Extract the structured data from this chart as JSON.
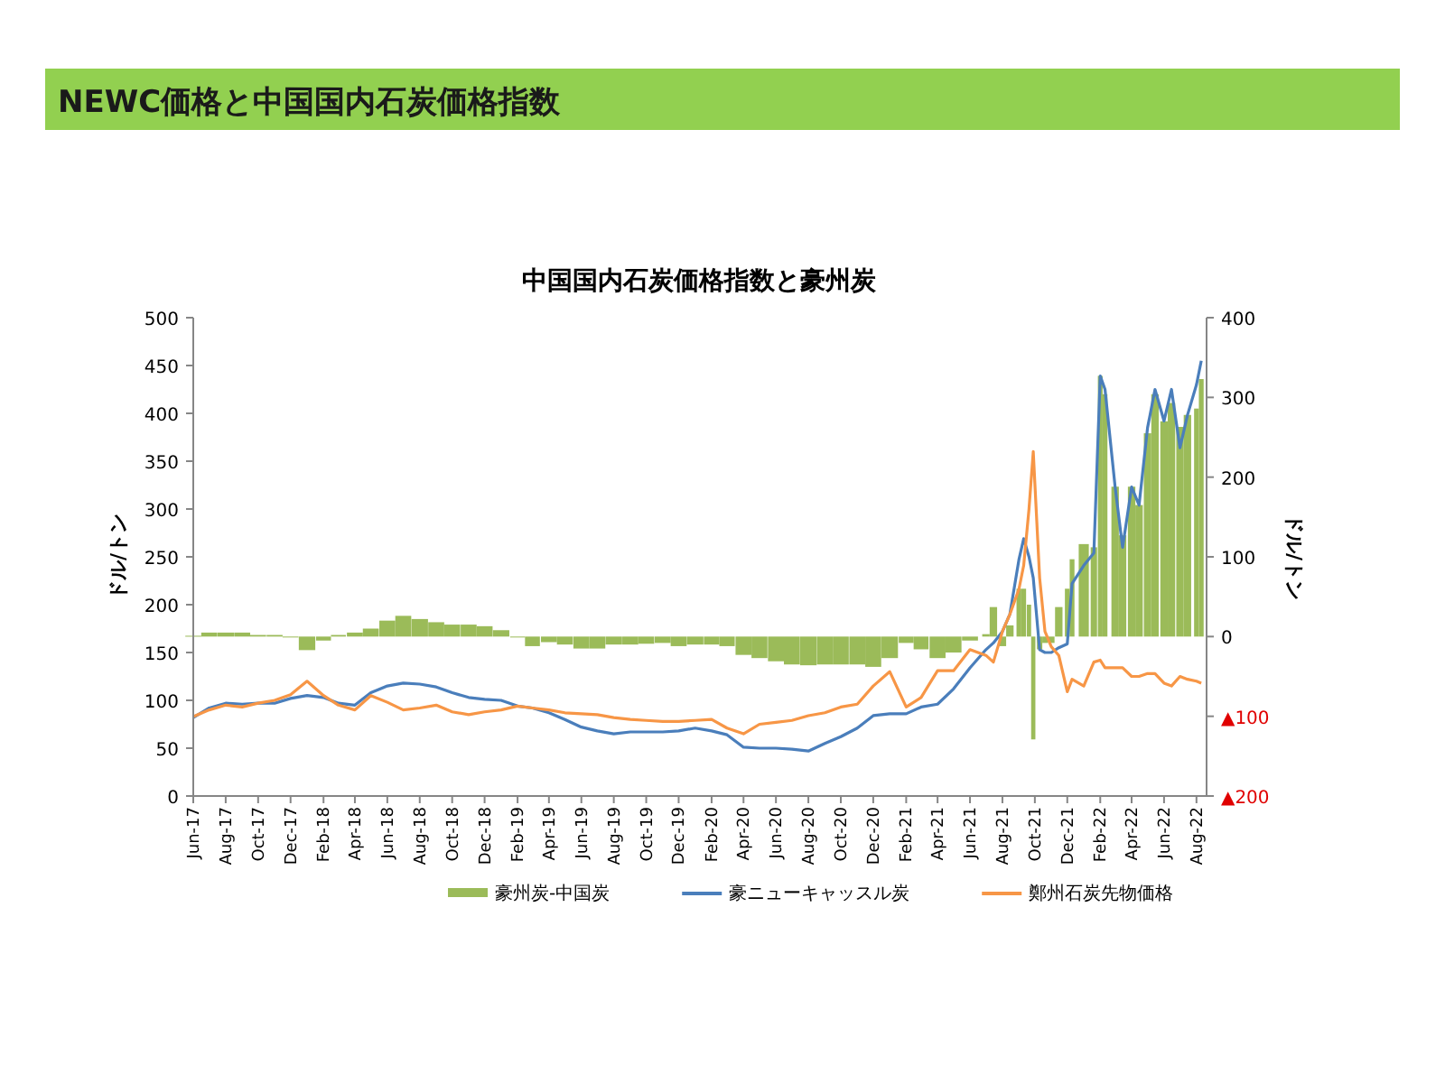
{
  "chart_data": {
    "type": "bar",
    "title": "NEWC価格と中国国内石炭価格指数",
    "subtitle": "中国国内石炭価格指数と豪州炭",
    "ylabel": "ドル/トン",
    "y2label": "ドル/トン",
    "legend": "bottom",
    "x": [
      "2017-06-01",
      "2017-07-01",
      "2017-08-01",
      "2017-09-01",
      "2017-10-01",
      "2017-11-01",
      "2017-12-01",
      "2018-01-01",
      "2018-02-01",
      "2018-03-01",
      "2018-04-01",
      "2018-05-01",
      "2018-06-01",
      "2018-07-01",
      "2018-08-01",
      "2018-09-01",
      "2018-10-01",
      "2018-11-01",
      "2018-12-01",
      "2019-01-01",
      "2019-02-01",
      "2019-03-01",
      "2019-04-01",
      "2019-05-01",
      "2019-06-01",
      "2019-07-01",
      "2019-08-01",
      "2019-09-01",
      "2019-10-01",
      "2019-11-01",
      "2019-12-01",
      "2020-01-01",
      "2020-02-01",
      "2020-03-01",
      "2020-04-01",
      "2020-05-01",
      "2020-06-01",
      "2020-07-01",
      "2020-08-01",
      "2020-09-01",
      "2020-10-01",
      "2020-11-01",
      "2020-12-01",
      "2021-01-01",
      "2021-02-01",
      "2021-03-01",
      "2021-04-01",
      "2021-05-01",
      "2021-06-01",
      "2021-07-01",
      "2021-07-15",
      "2021-08-01",
      "2021-08-15",
      "2021-09-01",
      "2021-09-10",
      "2021-09-20",
      "2021-09-28",
      "2021-10-10",
      "2021-10-20",
      "2021-11-01",
      "2021-11-15",
      "2021-12-01",
      "2021-12-10",
      "2022-01-01",
      "2022-01-20",
      "2022-02-01",
      "2022-02-10",
      "2022-03-01",
      "2022-03-15",
      "2022-04-01",
      "2022-04-15",
      "2022-05-01",
      "2022-05-15",
      "2022-06-01",
      "2022-06-15",
      "2022-07-01",
      "2022-07-15",
      "2022-08-01",
      "2022-08-10"
    ],
    "xlim": [
      "2017-06-01",
      "2022-08-20"
    ],
    "xticks": [
      {
        "value": "2017-06-01",
        "label": "Jun-17"
      },
      {
        "value": "2017-08-01",
        "label": "Aug-17"
      },
      {
        "value": "2017-10-01",
        "label": "Oct-17"
      },
      {
        "value": "2017-12-01",
        "label": "Dec-17"
      },
      {
        "value": "2018-02-01",
        "label": "Feb-18"
      },
      {
        "value": "2018-04-01",
        "label": "Apr-18"
      },
      {
        "value": "2018-06-01",
        "label": "Jun-18"
      },
      {
        "value": "2018-08-01",
        "label": "Aug-18"
      },
      {
        "value": "2018-10-01",
        "label": "Oct-18"
      },
      {
        "value": "2018-12-01",
        "label": "Dec-18"
      },
      {
        "value": "2019-02-01",
        "label": "Feb-19"
      },
      {
        "value": "2019-04-01",
        "label": "Apr-19"
      },
      {
        "value": "2019-06-01",
        "label": "Jun-19"
      },
      {
        "value": "2019-08-01",
        "label": "Aug-19"
      },
      {
        "value": "2019-10-01",
        "label": "Oct-19"
      },
      {
        "value": "2019-12-01",
        "label": "Dec-19"
      },
      {
        "value": "2020-02-01",
        "label": "Feb-20"
      },
      {
        "value": "2020-04-01",
        "label": "Apr-20"
      },
      {
        "value": "2020-06-01",
        "label": "Jun-20"
      },
      {
        "value": "2020-08-01",
        "label": "Aug-20"
      },
      {
        "value": "2020-10-01",
        "label": "Oct-20"
      },
      {
        "value": "2020-12-01",
        "label": "Dec-20"
      },
      {
        "value": "2021-02-01",
        "label": "Feb-21"
      },
      {
        "value": "2021-04-01",
        "label": "Apr-21"
      },
      {
        "value": "2021-06-01",
        "label": "Jun-21"
      },
      {
        "value": "2021-08-01",
        "label": "Aug-21"
      },
      {
        "value": "2021-10-01",
        "label": "Oct-21"
      },
      {
        "value": "2021-12-01",
        "label": "Dec-21"
      },
      {
        "value": "2022-02-01",
        "label": "Feb-22"
      },
      {
        "value": "2022-04-01",
        "label": "Apr-22"
      },
      {
        "value": "2022-06-01",
        "label": "Jun-22"
      },
      {
        "value": "2022-08-01",
        "label": "Aug-22"
      }
    ],
    "ylim": [
      0,
      500
    ],
    "yticks": [
      0,
      50,
      100,
      150,
      200,
      250,
      300,
      350,
      400,
      450,
      500
    ],
    "y2lim": [
      -200,
      400
    ],
    "y2ticks": [
      400,
      300,
      200,
      100,
      0,
      {
        "value": -100,
        "label": "▲100"
      },
      {
        "value": -200,
        "label": "▲200"
      }
    ],
    "series": [
      {
        "name": "豪州炭-中国炭",
        "axis": "y2",
        "color": "#9bbb59",
        "values": [
          1,
          5,
          5,
          5,
          2,
          2,
          0,
          -17,
          -5,
          2,
          5,
          10,
          20,
          26,
          22,
          18,
          15,
          15,
          13,
          8,
          0,
          -12,
          -7,
          -10,
          -15,
          -15,
          -10,
          -10,
          -9,
          -8,
          -12,
          -10,
          -10,
          -12,
          -23,
          -27,
          -31,
          -35,
          -36,
          -35,
          -35,
          -35,
          -38,
          -27,
          -8,
          -16,
          -27,
          -20,
          -5,
          3,
          37,
          -12,
          14,
          60,
          60,
          40,
          -129,
          -16,
          -8,
          -8,
          37,
          60,
          97,
          116,
          112,
          327,
          304,
          188,
          127,
          188,
          165,
          255,
          304,
          270,
          293,
          263,
          278,
          286,
          323
        ]
      },
      {
        "name": "豪ニューキャッスル炭",
        "type": "line",
        "color": "#4a7ebb",
        "values": [
          82,
          92,
          97,
          96,
          97,
          97,
          102,
          105,
          103,
          97,
          95,
          108,
          115,
          118,
          117,
          114,
          108,
          103,
          101,
          100,
          94,
          92,
          87,
          80,
          72,
          68,
          65,
          67,
          67,
          67,
          68,
          71,
          68,
          64,
          51,
          50,
          50,
          49,
          47,
          55,
          62,
          71,
          84,
          86,
          86,
          93,
          96,
          112,
          134,
          153,
          160,
          172,
          190,
          247,
          269,
          250,
          228,
          153,
          150,
          150,
          155,
          159,
          222,
          241,
          254,
          439,
          425,
          323,
          260,
          323,
          304,
          385,
          425,
          392,
          425,
          364,
          398,
          430,
          455
        ]
      },
      {
        "name": "鄭州石炭先物価格",
        "type": "line",
        "color": "#f79646",
        "values": [
          83,
          90,
          95,
          93,
          97,
          100,
          106,
          120,
          105,
          95,
          90,
          105,
          98,
          90,
          92,
          95,
          88,
          85,
          88,
          90,
          94,
          92,
          90,
          87,
          86,
          85,
          82,
          80,
          79,
          78,
          78,
          79,
          80,
          71,
          65,
          75,
          77,
          79,
          84,
          87,
          93,
          96,
          115,
          130,
          93,
          103,
          131,
          131,
          153,
          147,
          140,
          172,
          190,
          216,
          241,
          300,
          360,
          228,
          172,
          156,
          147,
          109,
          122,
          115,
          140,
          142,
          134,
          134,
          134,
          125,
          125,
          128,
          128,
          118,
          115,
          125,
          122,
          120,
          118
        ]
      }
    ]
  }
}
